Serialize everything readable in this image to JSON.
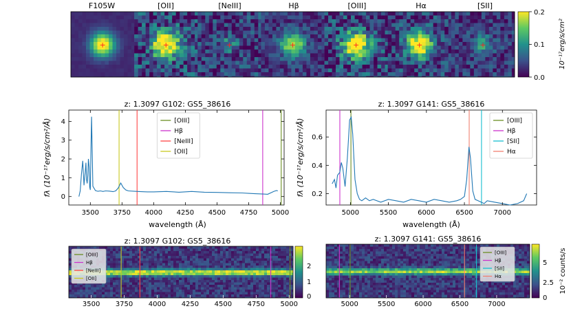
{
  "colors": {
    "spectrum": "#1f77b4",
    "OIII": "#6b8e23",
    "Hb": "#cc33cc",
    "NeIII": "#ff4444",
    "OII": "#c8c820",
    "SII": "#17becf",
    "Ha": "#f08070",
    "cmap_low": "#440154",
    "cmap_mid": "#21918c",
    "cmap_high": "#fde725"
  },
  "chart_data": [
    {
      "type": "heatmap",
      "panel": "stamps",
      "stamp_labels": [
        "F105W",
        "[OII]",
        "[NeIII]",
        "Hβ",
        "[OIII]",
        "Hα",
        "[SII]"
      ],
      "colorbar": {
        "label": "10⁻¹⁷erg/s/cm²",
        "ticks": [
          "0.0",
          "0.1",
          "0.2"
        ],
        "range": [
          0,
          0.2
        ]
      }
    },
    {
      "type": "line",
      "panel": "spec-g102",
      "title": "z: 1.3097  G102: GS5_38616",
      "xlabel": "wavelength (Å)",
      "ylabel": "fλ (10⁻¹⁷erg/s/cm²/Å)",
      "xlim": [
        3330,
        5030
      ],
      "ylim": [
        -0.45,
        4.6
      ],
      "xticks": [
        "3500",
        "3750",
        "4000",
        "4250",
        "4500",
        "4750",
        "5000"
      ],
      "yticks": [
        "0",
        "1",
        "2",
        "3",
        "4"
      ],
      "legend_position": "top-center",
      "x": [
        3410,
        3420,
        3430,
        3440,
        3450,
        3455,
        3460,
        3465,
        3470,
        3475,
        3480,
        3485,
        3490,
        3495,
        3500,
        3505,
        3510,
        3520,
        3540,
        3560,
        3580,
        3600,
        3620,
        3650,
        3680,
        3700,
        3720,
        3740,
        3760,
        3780,
        3800,
        3850,
        3900,
        3950,
        4000,
        4100,
        4200,
        4300,
        4400,
        4500,
        4600,
        4700,
        4750,
        4800,
        4850,
        4900,
        4950,
        4970,
        4980
      ],
      "values": [
        0.0,
        0.3,
        1.2,
        1.9,
        0.6,
        1.0,
        1.3,
        1.8,
        0.9,
        0.7,
        1.1,
        2.0,
        1.6,
        0.5,
        0.35,
        2.5,
        4.25,
        0.55,
        0.32,
        0.28,
        0.3,
        0.27,
        0.3,
        0.29,
        0.26,
        0.3,
        0.45,
        0.72,
        0.48,
        0.35,
        0.3,
        0.28,
        0.26,
        0.25,
        0.25,
        0.27,
        0.23,
        0.27,
        0.23,
        0.22,
        0.2,
        0.19,
        0.17,
        0.15,
        0.14,
        0.12,
        0.28,
        0.32,
        0.3
      ],
      "lines": [
        {
          "name": "[OIII]",
          "x": 5007
        },
        {
          "name": "Hβ",
          "x": 4861
        },
        {
          "name": "[NeIII]",
          "x": 3869
        },
        {
          "name": "[OII]",
          "x": 3727
        }
      ]
    },
    {
      "type": "line",
      "panel": "spec-g141",
      "title": "z: 1.3097  G141: GS5_38616",
      "xlabel": "wavelength (Å)",
      "ylabel": "fλ (10⁻¹⁷erg/s/cm²/Å)",
      "xlim": [
        4680,
        7450
      ],
      "ylim": [
        0.12,
        0.79
      ],
      "xticks": [
        "5000",
        "5500",
        "6000",
        "6500",
        "7000"
      ],
      "yticks": [
        "0.2",
        "0.4",
        "0.6"
      ],
      "legend_position": "top-right",
      "x": [
        4760,
        4790,
        4810,
        4830,
        4860,
        4880,
        4900,
        4930,
        4960,
        4990,
        5010,
        5030,
        5060,
        5090,
        5120,
        5150,
        5200,
        5250,
        5300,
        5400,
        5500,
        5600,
        5700,
        5800,
        5900,
        6000,
        6100,
        6200,
        6300,
        6400,
        6450,
        6500,
        6530,
        6560,
        6580,
        6610,
        6640,
        6680,
        6720,
        6760,
        6800,
        6900,
        7000,
        7100,
        7200,
        7280,
        7320
      ],
      "values": [
        0.27,
        0.3,
        0.24,
        0.33,
        0.35,
        0.42,
        0.38,
        0.25,
        0.45,
        0.72,
        0.74,
        0.62,
        0.3,
        0.2,
        0.16,
        0.15,
        0.17,
        0.15,
        0.16,
        0.14,
        0.16,
        0.15,
        0.14,
        0.16,
        0.15,
        0.14,
        0.16,
        0.15,
        0.14,
        0.15,
        0.16,
        0.18,
        0.3,
        0.53,
        0.45,
        0.22,
        0.16,
        0.15,
        0.14,
        0.13,
        0.15,
        0.14,
        0.13,
        0.12,
        0.13,
        0.15,
        0.2
      ],
      "lines": [
        {
          "name": "[OIII]",
          "x": 5007
        },
        {
          "name": "Hβ",
          "x": 4861
        },
        {
          "name": "[SII]",
          "x": 6725
        },
        {
          "name": "Hα",
          "x": 6563
        }
      ]
    },
    {
      "type": "heatmap",
      "panel": "2d-g102",
      "title": "z: 1.3097  G102: GS5_38616",
      "xlim": [
        3330,
        5030
      ],
      "xticks": [
        "3500",
        "3750",
        "4000",
        "4250",
        "4500",
        "4750",
        "5000"
      ],
      "colorbar": {
        "ticks": [
          "0",
          "1",
          "2"
        ],
        "range": [
          -0.2,
          3.0
        ]
      },
      "legend": [
        "[OIII]",
        "Hβ",
        "[NeIII]",
        "[OII]"
      ]
    },
    {
      "type": "heatmap",
      "panel": "2d-g141",
      "title": "z: 1.3097  G141: GS5_38616",
      "xlim": [
        4680,
        7450
      ],
      "xticks": [
        "5000",
        "5500",
        "6000",
        "6500",
        "7000"
      ],
      "colorbar": {
        "label": "10⁻² counts/s",
        "ticks": [
          "0",
          "2.5",
          "5"
        ],
        "range": [
          -0.1,
          7.5
        ]
      },
      "legend": [
        "[OIII]",
        "Hβ",
        "[SII]",
        "Hα"
      ]
    }
  ]
}
